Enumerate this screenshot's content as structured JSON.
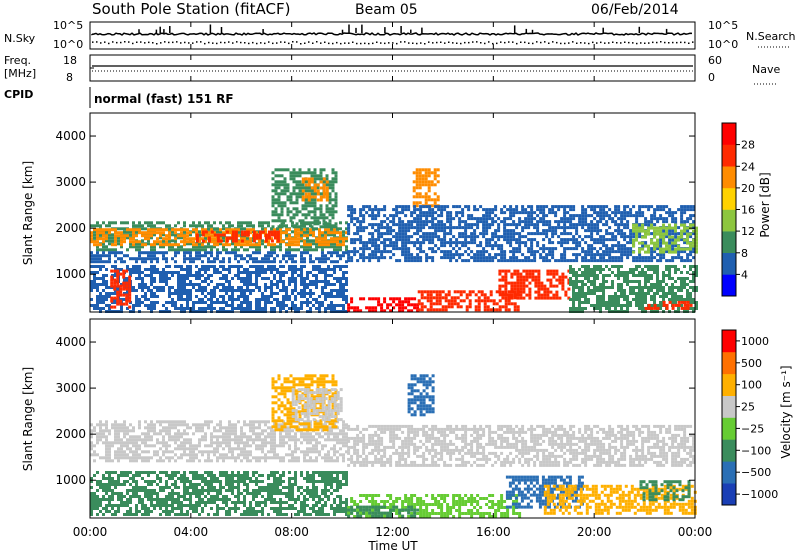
{
  "header": {
    "station": "South Pole Station (fitACF)",
    "beam": "Beam 05",
    "date": "06/Feb/2014"
  },
  "sky_panel": {
    "label": "N.Sky",
    "top_tick_left": "10^5",
    "bottom_tick_left": "10^0",
    "top_tick_right": "10^5",
    "bottom_tick_right": "10^0",
    "right_label": "N.Search"
  },
  "freq_panel": {
    "label_line1": "Freq.",
    "label_line2": "[MHz]",
    "tick_18": "18",
    "tick_8": "8",
    "right_tick_60": "60",
    "right_tick_0": "0",
    "right_label": "Nave"
  },
  "cpid": {
    "label": "CPID",
    "value": "normal (fast) 151 RF"
  },
  "x_axis": {
    "label": "Time UT",
    "ticks": [
      "00:00",
      "04:00",
      "08:00",
      "12:00",
      "16:00",
      "20:00",
      "00:00"
    ]
  },
  "chart_data": [
    {
      "type": "heatmap",
      "ylabel": "Slant Range [km]",
      "xlabel": "Time UT",
      "xlim_hours": [
        0,
        24
      ],
      "ylim_km": [
        180,
        4500
      ],
      "y_ticks": [
        "1000",
        "2000",
        "3000",
        "4000"
      ],
      "colorbar": {
        "label": "Power [dB]",
        "ticks": [
          "4",
          "8",
          "12",
          "16",
          "20",
          "24",
          "28"
        ],
        "colors": [
          "#0000ff",
          "#1f5fb0",
          "#3a8c5c",
          "#8dc63f",
          "#ffd200",
          "#ff8c00",
          "#ff2a00",
          "#ff0000"
        ]
      }
    },
    {
      "type": "heatmap",
      "ylabel": "Slant Range [km]",
      "xlabel": "Time UT",
      "xlim_hours": [
        0,
        24
      ],
      "ylim_km": [
        180,
        4500
      ],
      "y_ticks": [
        "1000",
        "2000",
        "3000",
        "4000"
      ],
      "colorbar": {
        "label": "Velocity [m s⁻¹]",
        "ticks": [
          "1000",
          "500",
          "100",
          "25",
          "−25",
          "−100",
          "−500",
          "−1000"
        ],
        "colors": [
          "#1a3fb5",
          "#2a6fb5",
          "#3a8c5c",
          "#66cc33",
          "#c8c8c8",
          "#ffb000",
          "#ff7000",
          "#ff0000"
        ]
      }
    }
  ],
  "echo_regions": [
    {
      "panel": 0,
      "t0": 0.0,
      "t1": 10.2,
      "r0": 1550,
      "r1": 2150,
      "color": "#3a8c5c"
    },
    {
      "panel": 0,
      "t0": 0.0,
      "t1": 10.2,
      "r0": 1650,
      "r1": 2000,
      "color": "#ff8c00"
    },
    {
      "panel": 0,
      "t0": 4.2,
      "t1": 7.5,
      "r0": 1700,
      "r1": 1950,
      "color": "#ff2a00"
    },
    {
      "panel": 0,
      "t0": 7.2,
      "t1": 9.8,
      "r0": 2050,
      "r1": 3300,
      "color": "#3a8c5c"
    },
    {
      "panel": 0,
      "t0": 8.4,
      "t1": 9.4,
      "r0": 2600,
      "r1": 3100,
      "color": "#ff8c00"
    },
    {
      "panel": 0,
      "t0": 0.0,
      "t1": 10.2,
      "r0": 1300,
      "r1": 1500,
      "color": "#1f5fb0"
    },
    {
      "panel": 0,
      "t0": 0.0,
      "t1": 10.2,
      "r0": 220,
      "r1": 1200,
      "color": "#1f5fb0"
    },
    {
      "panel": 0,
      "t0": 0.8,
      "t1": 1.6,
      "r0": 300,
      "r1": 1100,
      "color": "#ff2a00"
    },
    {
      "panel": 0,
      "t0": 12.8,
      "t1": 13.8,
      "r0": 2500,
      "r1": 3300,
      "color": "#ff8c00"
    },
    {
      "panel": 0,
      "t0": 10.2,
      "t1": 24.0,
      "r0": 1300,
      "r1": 2500,
      "color": "#1f5fb0"
    },
    {
      "panel": 0,
      "t0": 10.2,
      "t1": 13.0,
      "r0": 190,
      "r1": 500,
      "color": "#ff0000"
    },
    {
      "panel": 0,
      "t0": 13.0,
      "t1": 17.0,
      "r0": 250,
      "r1": 650,
      "color": "#ff2a00"
    },
    {
      "panel": 0,
      "t0": 16.2,
      "t1": 19.0,
      "r0": 500,
      "r1": 1100,
      "color": "#ff2a00"
    },
    {
      "panel": 0,
      "t0": 19.0,
      "t1": 24.0,
      "r0": 200,
      "r1": 1200,
      "color": "#3a8c5c"
    },
    {
      "panel": 0,
      "t0": 21.5,
      "t1": 24.0,
      "r0": 1500,
      "r1": 2100,
      "color": "#8dc63f"
    },
    {
      "panel": 0,
      "t0": 22.0,
      "t1": 23.8,
      "r0": 230,
      "r1": 420,
      "color": "#ff2a00"
    },
    {
      "panel": 1,
      "t0": 0.0,
      "t1": 10.2,
      "r0": 1400,
      "r1": 2300,
      "color": "#c8c8c8"
    },
    {
      "panel": 1,
      "t0": 7.2,
      "t1": 9.8,
      "r0": 2100,
      "r1": 3300,
      "color": "#ffb000"
    },
    {
      "panel": 1,
      "t0": 8.0,
      "t1": 10.0,
      "r0": 2300,
      "r1": 3000,
      "color": "#c8c8c8"
    },
    {
      "panel": 1,
      "t0": 0.0,
      "t1": 10.2,
      "r0": 250,
      "r1": 1200,
      "color": "#3a8c5c"
    },
    {
      "panel": 1,
      "t0": 12.6,
      "t1": 13.6,
      "r0": 2400,
      "r1": 3300,
      "color": "#2a6fb5"
    },
    {
      "panel": 1,
      "t0": 10.2,
      "t1": 24.0,
      "r0": 1300,
      "r1": 2200,
      "color": "#c8c8c8"
    },
    {
      "panel": 1,
      "t0": 10.2,
      "t1": 17.0,
      "r0": 190,
      "r1": 700,
      "color": "#66cc33"
    },
    {
      "panel": 1,
      "t0": 10.2,
      "t1": 13.0,
      "r0": 190,
      "r1": 450,
      "color": "#3a8c5c"
    },
    {
      "panel": 1,
      "t0": 16.5,
      "t1": 19.5,
      "r0": 400,
      "r1": 1100,
      "color": "#2a6fb5"
    },
    {
      "panel": 1,
      "t0": 18.0,
      "t1": 24.0,
      "r0": 250,
      "r1": 900,
      "color": "#ffb000"
    },
    {
      "panel": 1,
      "t0": 21.8,
      "t1": 23.8,
      "r0": 600,
      "r1": 1000,
      "color": "#3a8c5c"
    }
  ]
}
